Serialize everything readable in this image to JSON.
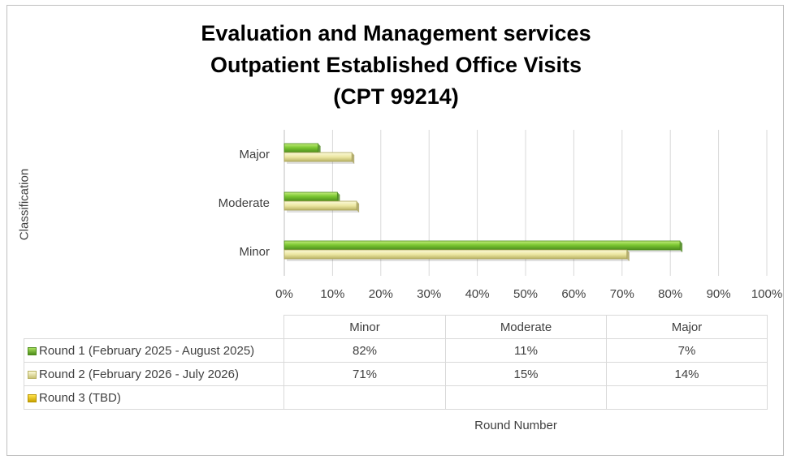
{
  "chart_data": {
    "type": "bar",
    "orientation": "horizontal",
    "title": [
      "Evaluation and Management services",
      "Outpatient Established Office Visits",
      "(CPT 99214)"
    ],
    "ylabel": "Classification",
    "xlabel": "Round Number",
    "categories": [
      "Minor",
      "Moderate",
      "Major"
    ],
    "x_ticks": [
      "0%",
      "10%",
      "20%",
      "30%",
      "40%",
      "50%",
      "60%",
      "70%",
      "80%",
      "90%",
      "100%"
    ],
    "xlim": [
      0,
      100
    ],
    "grid": "vertical",
    "legend": "data-table",
    "series": [
      {
        "name": "Round 1 (February 2025 - August 2025)",
        "values": [
          82,
          11,
          7
        ],
        "labels": [
          "82%",
          "11%",
          "7%"
        ],
        "color": "#6bb52a"
      },
      {
        "name": "Round 2 (February 2026 - July 2026)",
        "values": [
          71,
          15,
          14
        ],
        "labels": [
          "71%",
          "15%",
          "14%"
        ],
        "color": "#e8e49a"
      },
      {
        "name": "Round 3 (TBD)",
        "values": [
          null,
          null,
          null
        ],
        "labels": [
          "",
          "",
          ""
        ],
        "color": "#e5c000"
      }
    ]
  }
}
